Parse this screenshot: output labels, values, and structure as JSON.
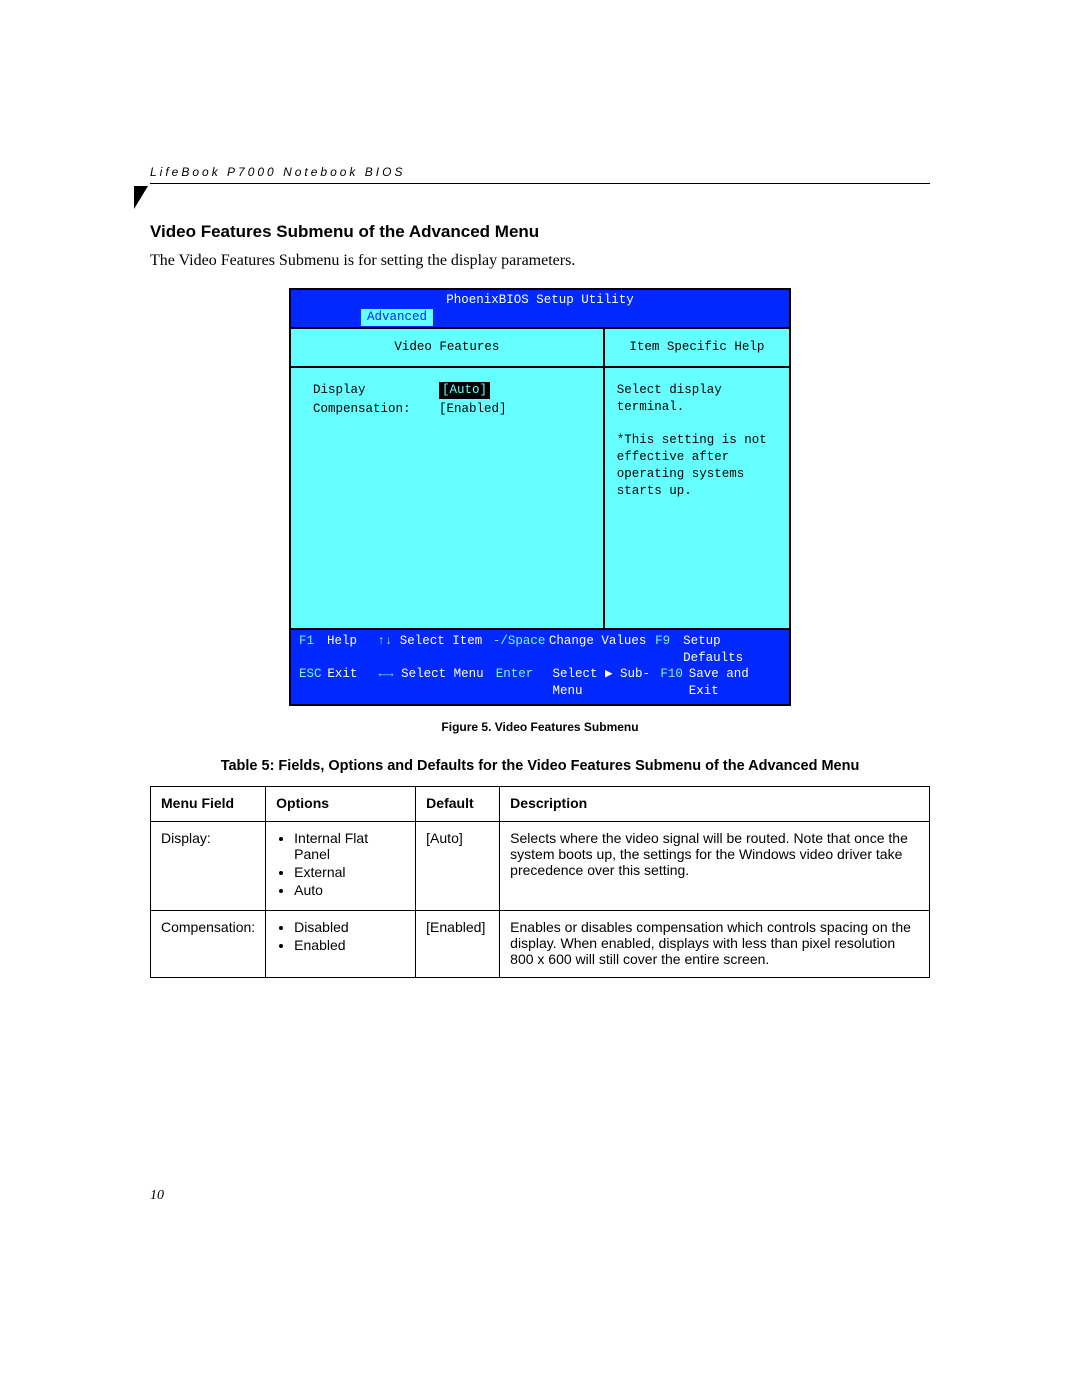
{
  "running_head": "LifeBook P7000 Notebook BIOS",
  "section_title": "Video Features Submenu of the Advanced Menu",
  "intro_text": "The Video Features Submenu is for setting the display parameters.",
  "bios": {
    "title": "PhoenixBIOS Setup Utility",
    "active_tab": "Advanced",
    "panel_title": "Video Features",
    "help_title": "Item Specific Help",
    "rows": [
      {
        "label": "Display",
        "value": "[Auto]",
        "selected": true
      },
      {
        "label": "Compensation:",
        "value": "[Enabled]",
        "selected": false
      }
    ],
    "help_lines": [
      "Select display terminal.",
      "",
      "*This setting is not",
      "effective after",
      "operating systems",
      "starts up."
    ],
    "footer": {
      "r1": {
        "k1": "F1",
        "l1": "Help",
        "a1": "↑↓",
        "t1": "Select Item",
        "k2": "-/Space",
        "t2": "Change Values",
        "k3": "F9",
        "t3": "Setup Defaults"
      },
      "r2": {
        "k1": "ESC",
        "l1": "Exit",
        "a1": "←→",
        "t1": "Select Menu",
        "k2": "Enter",
        "t2": "Select ▶ Sub-Menu",
        "k3": "F10",
        "t3": "Save and Exit"
      }
    }
  },
  "figure_caption": "Figure 5.  Video Features Submenu",
  "table_caption": "Table 5: Fields, Options and Defaults for the Video Features Submenu of the Advanced Menu",
  "table": {
    "headers": [
      "Menu Field",
      "Options",
      "Default",
      "Description"
    ],
    "rows": [
      {
        "field": "Display:",
        "options": [
          "Internal Flat Panel",
          "External",
          "Auto"
        ],
        "default": "[Auto]",
        "desc": "Selects where the video signal will be routed. Note that once the system boots up, the settings for the Windows video driver take precedence over this setting."
      },
      {
        "field": "Compensation:",
        "options": [
          "Disabled",
          "Enabled"
        ],
        "default": "[Enabled]",
        "desc": "Enables or disables compensation which controls spacing on the display. When enabled, displays with less than pixel resolution 800 x 600 will still cover the entire screen."
      }
    ]
  },
  "page_number": "10"
}
